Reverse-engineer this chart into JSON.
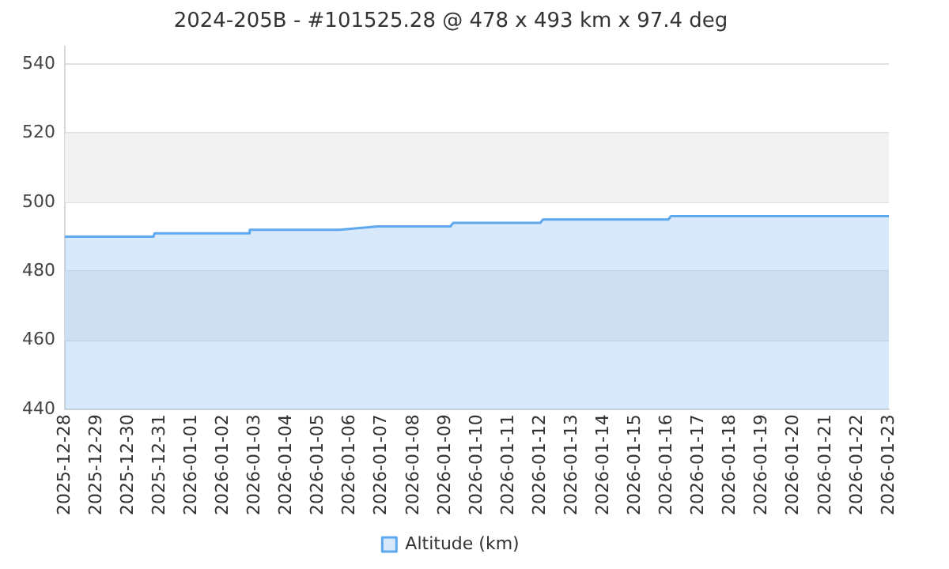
{
  "chart_data": {
    "type": "area",
    "title": "2024-205B - #101525.28 @ 478 x 493 km x 97.4 deg",
    "series": [
      {
        "name": "Altitude (km)",
        "color": "#5ea8f0",
        "x": [
          "2025-12-28",
          "2025-12-30T19:00",
          "2025-12-30T20:00",
          "2026-01-02T19:00",
          "2026-01-02T20:00",
          "2026-01-05T16:00",
          "2026-01-06T21:00",
          "2026-01-09T04:00",
          "2026-01-09T06:00",
          "2026-01-12T00:00",
          "2026-01-12T02:00",
          "2026-01-16T01:00",
          "2026-01-16T03:00",
          "2026-01-23"
        ],
        "values": [
          490,
          490,
          491,
          491,
          492,
          492,
          493,
          493,
          494,
          494,
          495,
          495,
          496,
          496
        ]
      }
    ],
    "xlim": [
      "2025-12-28",
      "2026-01-23"
    ],
    "xticks": [
      "2025-12-28",
      "2025-12-29",
      "2025-12-30",
      "2025-12-31",
      "2026-01-01",
      "2026-01-02",
      "2026-01-03",
      "2026-01-04",
      "2026-01-05",
      "2026-01-06",
      "2026-01-07",
      "2026-01-08",
      "2026-01-09",
      "2026-01-10",
      "2026-01-11",
      "2026-01-12",
      "2026-01-13",
      "2026-01-14",
      "2026-01-15",
      "2026-01-16",
      "2026-01-17",
      "2026-01-18",
      "2026-01-19",
      "2026-01-20",
      "2026-01-21",
      "2026-01-22",
      "2026-01-23"
    ],
    "ylim": [
      440,
      545
    ],
    "yticks": [
      440,
      460,
      480,
      500,
      520,
      540
    ],
    "bands": [
      {
        "axis": "y",
        "from": 460,
        "to": 480,
        "color": "#f2f2f2"
      },
      {
        "axis": "y",
        "from": 500,
        "to": 520,
        "color": "#f2f2f2"
      }
    ],
    "grid": "y",
    "legend": "bottom"
  }
}
